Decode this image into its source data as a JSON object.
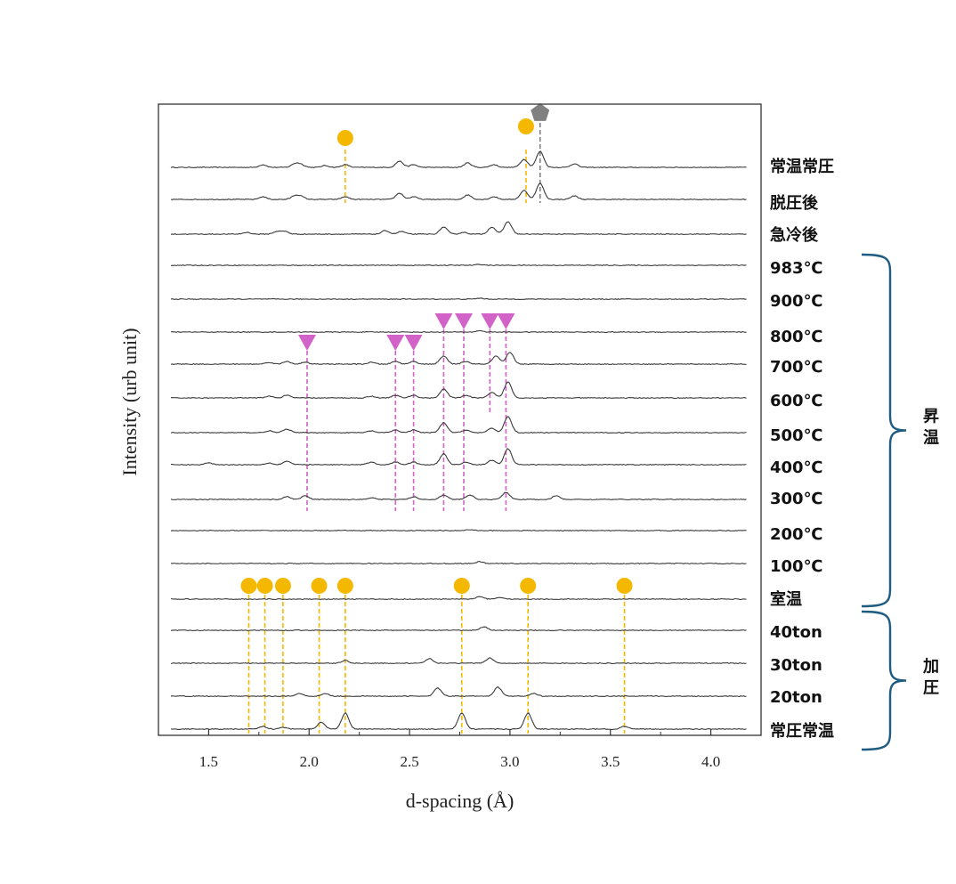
{
  "chart_data": {
    "type": "line",
    "xlabel": "d-spacing (Å)",
    "ylabel": "Intensity (urb unit)",
    "xlim": [
      1.25,
      4.25
    ],
    "xticks": [
      1.5,
      2.0,
      2.5,
      3.0,
      3.5,
      4.0
    ],
    "xtick_labels": [
      "1.5",
      "2.0",
      "2.5",
      "3.0",
      "3.5",
      "4.0"
    ],
    "grid": false,
    "colors": {
      "trace": "#3a3a3a",
      "circle_marker": "#f5b800",
      "triangle_marker": "#d262c8",
      "pentagon_marker": "#808080",
      "bracket": "#1f5c82"
    },
    "series": [
      {
        "name": "常温常圧",
        "peaks": [
          {
            "x": 1.77,
            "h": 3
          },
          {
            "x": 1.93,
            "h": 4
          },
          {
            "x": 1.96,
            "h": 3
          },
          {
            "x": 2.08,
            "h": 2
          },
          {
            "x": 2.18,
            "h": 3
          },
          {
            "x": 2.45,
            "h": 7
          },
          {
            "x": 2.52,
            "h": 3
          },
          {
            "x": 2.79,
            "h": 5
          },
          {
            "x": 2.92,
            "h": 3
          },
          {
            "x": 3.07,
            "h": 9
          },
          {
            "x": 3.15,
            "h": 18
          },
          {
            "x": 3.32,
            "h": 4
          }
        ]
      },
      {
        "name": "脱圧後",
        "peaks": [
          {
            "x": 1.77,
            "h": 3
          },
          {
            "x": 1.93,
            "h": 4
          },
          {
            "x": 1.96,
            "h": 3
          },
          {
            "x": 2.18,
            "h": 3
          },
          {
            "x": 2.45,
            "h": 7
          },
          {
            "x": 2.52,
            "h": 3
          },
          {
            "x": 2.79,
            "h": 5
          },
          {
            "x": 2.92,
            "h": 3
          },
          {
            "x": 3.07,
            "h": 10
          },
          {
            "x": 3.15,
            "h": 18
          },
          {
            "x": 3.32,
            "h": 4
          }
        ]
      },
      {
        "name": "急冷後",
        "peaks": [
          {
            "x": 1.69,
            "h": 2
          },
          {
            "x": 1.84,
            "h": 3
          },
          {
            "x": 1.88,
            "h": 3
          },
          {
            "x": 2.38,
            "h": 4
          },
          {
            "x": 2.46,
            "h": 3
          },
          {
            "x": 2.67,
            "h": 8
          },
          {
            "x": 2.77,
            "h": 2
          },
          {
            "x": 2.91,
            "h": 8
          },
          {
            "x": 2.99,
            "h": 14
          }
        ]
      },
      {
        "name": "983℃",
        "peaks": [
          {
            "x": 2.85,
            "h": 1
          }
        ]
      },
      {
        "name": "900℃",
        "peaks": [
          {
            "x": 2.85,
            "h": 1
          }
        ]
      },
      {
        "name": "800℃",
        "peaks": [
          {
            "x": 2.85,
            "h": 1.5
          }
        ]
      },
      {
        "name": "700℃",
        "peaks": [
          {
            "x": 1.8,
            "h": 2
          },
          {
            "x": 1.89,
            "h": 3
          },
          {
            "x": 1.98,
            "h": 2
          },
          {
            "x": 2.31,
            "h": 2
          },
          {
            "x": 2.43,
            "h": 3
          },
          {
            "x": 2.52,
            "h": 3
          },
          {
            "x": 2.67,
            "h": 9
          },
          {
            "x": 2.78,
            "h": 3
          },
          {
            "x": 2.93,
            "h": 9
          },
          {
            "x": 3.0,
            "h": 13
          }
        ]
      },
      {
        "name": "600℃",
        "peaks": [
          {
            "x": 1.8,
            "h": 2
          },
          {
            "x": 1.89,
            "h": 3
          },
          {
            "x": 2.31,
            "h": 2
          },
          {
            "x": 2.43,
            "h": 3
          },
          {
            "x": 2.52,
            "h": 3
          },
          {
            "x": 2.67,
            "h": 10
          },
          {
            "x": 2.78,
            "h": 3
          },
          {
            "x": 2.91,
            "h": 6
          },
          {
            "x": 2.99,
            "h": 18
          }
        ]
      },
      {
        "name": "500℃",
        "peaks": [
          {
            "x": 1.8,
            "h": 2
          },
          {
            "x": 1.89,
            "h": 4
          },
          {
            "x": 2.31,
            "h": 2
          },
          {
            "x": 2.43,
            "h": 3
          },
          {
            "x": 2.52,
            "h": 3
          },
          {
            "x": 2.67,
            "h": 11
          },
          {
            "x": 2.78,
            "h": 3
          },
          {
            "x": 2.91,
            "h": 5
          },
          {
            "x": 2.99,
            "h": 18
          }
        ]
      },
      {
        "name": "400℃",
        "peaks": [
          {
            "x": 1.5,
            "h": 2
          },
          {
            "x": 1.8,
            "h": 2
          },
          {
            "x": 1.89,
            "h": 4
          },
          {
            "x": 2.31,
            "h": 3
          },
          {
            "x": 2.43,
            "h": 3
          },
          {
            "x": 2.52,
            "h": 3
          },
          {
            "x": 2.67,
            "h": 12
          },
          {
            "x": 2.78,
            "h": 3
          },
          {
            "x": 2.91,
            "h": 5
          },
          {
            "x": 2.99,
            "h": 18
          }
        ]
      },
      {
        "name": "300℃",
        "peaks": [
          {
            "x": 1.89,
            "h": 3
          },
          {
            "x": 1.98,
            "h": 4
          },
          {
            "x": 2.31,
            "h": 2
          },
          {
            "x": 2.52,
            "h": 3
          },
          {
            "x": 2.67,
            "h": 5
          },
          {
            "x": 2.8,
            "h": 5
          },
          {
            "x": 2.98,
            "h": 8
          },
          {
            "x": 3.23,
            "h": 4
          }
        ]
      },
      {
        "name": "200℃",
        "peaks": [
          {
            "x": 2.8,
            "h": 1
          }
        ]
      },
      {
        "name": "100℃",
        "peaks": [
          {
            "x": 2.85,
            "h": 2
          }
        ]
      },
      {
        "name": "室温",
        "peaks": [
          {
            "x": 2.85,
            "h": 3
          },
          {
            "x": 2.95,
            "h": 2
          }
        ]
      },
      {
        "name": "40ton",
        "peaks": [
          {
            "x": 2.87,
            "h": 4
          }
        ]
      },
      {
        "name": "30ton",
        "peaks": [
          {
            "x": 2.18,
            "h": 3
          },
          {
            "x": 2.6,
            "h": 5
          },
          {
            "x": 2.9,
            "h": 6
          }
        ]
      },
      {
        "name": "20ton",
        "peaks": [
          {
            "x": 1.95,
            "h": 3
          },
          {
            "x": 2.08,
            "h": 3
          },
          {
            "x": 2.64,
            "h": 9
          },
          {
            "x": 2.94,
            "h": 10
          },
          {
            "x": 3.12,
            "h": 3
          }
        ]
      },
      {
        "name": "常圧常温",
        "peaks": [
          {
            "x": 1.77,
            "h": 3
          },
          {
            "x": 1.87,
            "h": 2
          },
          {
            "x": 2.06,
            "h": 8
          },
          {
            "x": 2.18,
            "h": 18
          },
          {
            "x": 2.76,
            "h": 18
          },
          {
            "x": 3.09,
            "h": 18
          },
          {
            "x": 3.57,
            "h": 3
          }
        ]
      }
    ],
    "markers": [
      {
        "shape": "circle",
        "group": "top",
        "x": [
          2.18,
          3.08
        ]
      },
      {
        "shape": "pentagon",
        "group": "top",
        "x": [
          3.15
        ]
      },
      {
        "shape": "triangle",
        "group": "heating",
        "x": [
          1.99,
          2.43,
          2.52,
          2.67,
          2.77,
          2.9,
          2.98
        ]
      },
      {
        "shape": "circle",
        "group": "bottom",
        "x": [
          1.7,
          1.78,
          1.87,
          2.05,
          2.18,
          2.76,
          3.09,
          3.57
        ]
      }
    ],
    "groups": [
      {
        "label": "昇温",
        "from": "983℃",
        "to": "室温"
      },
      {
        "label": "加圧",
        "from": "40ton",
        "to": "常圧常温"
      }
    ]
  }
}
